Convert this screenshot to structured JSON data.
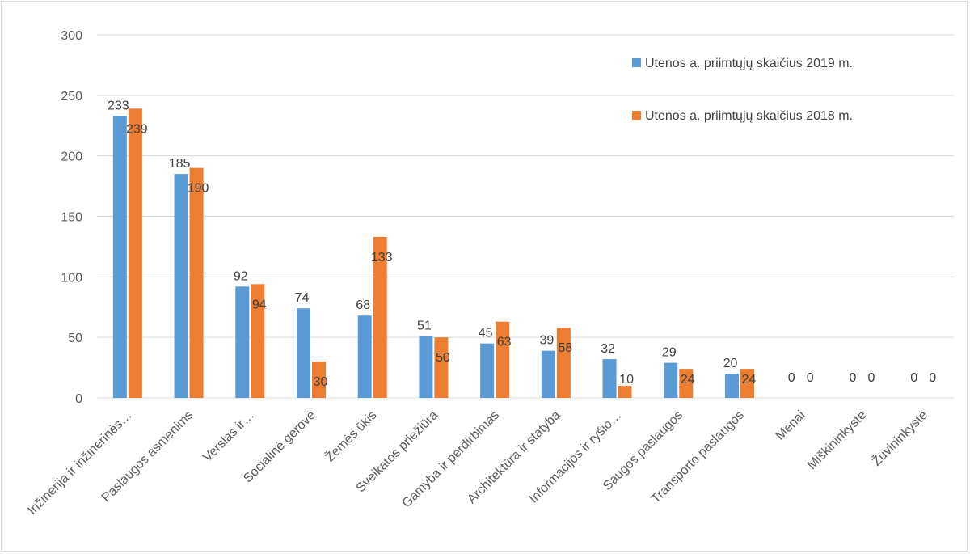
{
  "chart_data": {
    "type": "bar",
    "title": "",
    "xlabel": "",
    "ylabel": "",
    "ylim": [
      0,
      300
    ],
    "yticks": [
      0,
      50,
      100,
      150,
      200,
      250,
      300
    ],
    "grid": true,
    "legend_position": "top-right",
    "categories": [
      "Inžinerija ir inžinerinės…",
      "Paslaugos asmenims",
      "Verslas ir…",
      "Socialinė gerovė",
      "Žemės ūkis",
      "Sveikatos priežiūra",
      "Gamyba ir perdirbimas",
      "Architektūra ir statyba",
      "Informacijos ir ryšio…",
      "Saugos paslaugos",
      "Transporto paslaugos",
      "Menai",
      "Miškininkystė",
      "Žuvininkystė"
    ],
    "series": [
      {
        "name": "Utenos a. priimtųjų skaičius 2019 m.",
        "color": "#5b9bd5",
        "values": [
          233,
          185,
          92,
          74,
          68,
          51,
          45,
          39,
          32,
          29,
          20,
          0,
          0,
          0
        ]
      },
      {
        "name": "Utenos a. priimtųjų skaičius 2018 m.",
        "color": "#ed7d31",
        "values": [
          239,
          190,
          94,
          30,
          133,
          50,
          63,
          58,
          10,
          24,
          24,
          0,
          0,
          0
        ]
      }
    ]
  }
}
